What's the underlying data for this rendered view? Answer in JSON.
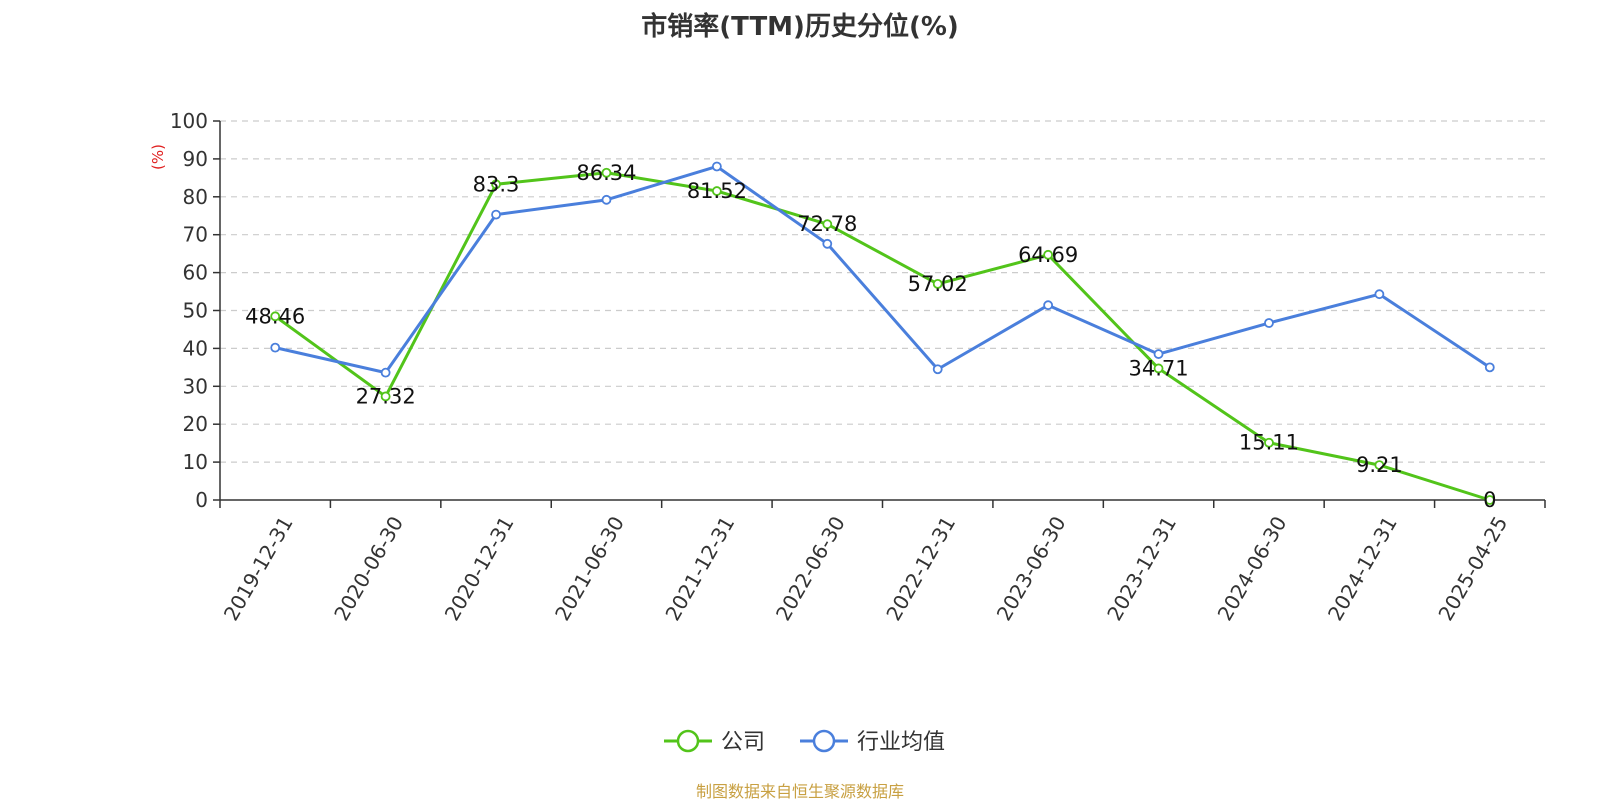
{
  "chart_data": {
    "type": "line",
    "title": "市销率(TTM)历史分位(%)",
    "ylabel": "(%)",
    "xlabel": "",
    "ylim": [
      0,
      100
    ],
    "y_ticks": [
      0,
      10,
      20,
      30,
      40,
      50,
      60,
      70,
      80,
      90,
      100
    ],
    "categories": [
      "2019-12-31",
      "2020-06-30",
      "2020-12-31",
      "2021-06-30",
      "2021-12-31",
      "2022-06-30",
      "2022-12-31",
      "2023-06-30",
      "2023-12-31",
      "2024-06-30",
      "2024-12-31",
      "2025-04-25"
    ],
    "grid": true,
    "legend_position": "bottom-center",
    "series": [
      {
        "name": "公司",
        "color": "#52c41a",
        "show_labels": true,
        "values": [
          48.46,
          27.32,
          83.3,
          86.34,
          81.52,
          72.78,
          57.02,
          64.69,
          34.71,
          15.11,
          9.21,
          0
        ]
      },
      {
        "name": "行业均值",
        "color": "#4a7fdc",
        "show_labels": false,
        "values": [
          40.2,
          33.6,
          75.3,
          79.2,
          88.0,
          67.6,
          34.5,
          51.4,
          38.5,
          46.7,
          54.3,
          35.0
        ]
      }
    ]
  },
  "source": "制图数据来自恒生聚源数据库"
}
